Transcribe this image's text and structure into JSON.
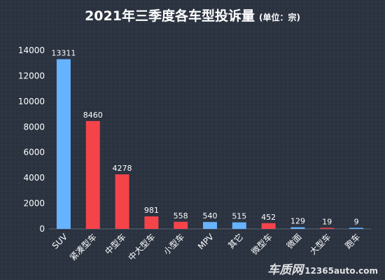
{
  "chart_data": {
    "type": "bar",
    "title": "2021年三季度各车型投诉量",
    "subtitle": "(单位：宗)",
    "categories": [
      "SUV",
      "紧凑型车",
      "中型车",
      "中大型车",
      "小型车",
      "MPV",
      "其它",
      "微型车",
      "微面",
      "大型车",
      "跑车"
    ],
    "values": [
      13311,
      8460,
      4278,
      981,
      558,
      540,
      515,
      452,
      129,
      19,
      9
    ],
    "bar_colors": [
      "#66b3ff",
      "#f5434a",
      "#f5434a",
      "#f5434a",
      "#f5434a",
      "#66b3ff",
      "#66b3ff",
      "#f5434a",
      "#66b3ff",
      "#f5434a",
      "#66b3ff"
    ],
    "ylim": [
      0,
      14000
    ],
    "yticks": [
      0,
      2000,
      4000,
      6000,
      8000,
      10000,
      12000,
      14000
    ],
    "grid": false,
    "legend": "none"
  },
  "watermark": {
    "brand": "车质网",
    "site": "12365auto.com"
  }
}
